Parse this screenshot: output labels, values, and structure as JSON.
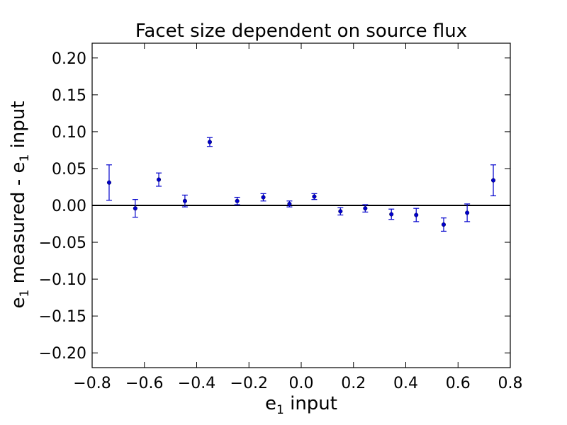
{
  "chart_data": {
    "type": "scatter",
    "title": "Facet size dependent on source flux",
    "xlabel": {
      "base": "e",
      "sub": "1",
      "rest": " input"
    },
    "ylabel": {
      "base": "e",
      "sub": "1",
      "mid": " measured - e",
      "sub2": "1",
      "rest": " input"
    },
    "xlim": [
      -0.8,
      0.8
    ],
    "ylim": [
      -0.22,
      0.22
    ],
    "xticks": [
      -0.8,
      -0.6,
      -0.4,
      -0.2,
      0.0,
      0.2,
      0.4,
      0.6,
      0.8
    ],
    "xtick_labels": [
      "−0.8",
      "−0.6",
      "−0.4",
      "−0.2",
      "0.0",
      "0.2",
      "0.4",
      "0.6",
      "0.8"
    ],
    "yticks": [
      0.2,
      0.15,
      0.1,
      0.05,
      0.0,
      -0.05,
      -0.1,
      -0.15,
      -0.2
    ],
    "ytick_labels": [
      "0.20",
      "0.15",
      "0.10",
      "0.05",
      "0.00",
      "−0.05",
      "−0.10",
      "−0.15",
      "−0.20"
    ],
    "reference_line": 0.0,
    "grid": false,
    "series": [
      {
        "color": "#0000cc",
        "points": [
          {
            "x": -0.735,
            "y": 0.031,
            "yerr": 0.024
          },
          {
            "x": -0.635,
            "y": -0.004,
            "yerr": 0.012
          },
          {
            "x": -0.545,
            "y": 0.035,
            "yerr": 0.009
          },
          {
            "x": -0.445,
            "y": 0.006,
            "yerr": 0.008
          },
          {
            "x": -0.35,
            "y": 0.086,
            "yerr": 0.006
          },
          {
            "x": -0.245,
            "y": 0.006,
            "yerr": 0.005
          },
          {
            "x": -0.145,
            "y": 0.011,
            "yerr": 0.005
          },
          {
            "x": -0.045,
            "y": 0.002,
            "yerr": 0.004
          },
          {
            "x": 0.05,
            "y": 0.012,
            "yerr": 0.004
          },
          {
            "x": 0.15,
            "y": -0.008,
            "yerr": 0.005
          },
          {
            "x": 0.245,
            "y": -0.004,
            "yerr": 0.005
          },
          {
            "x": 0.345,
            "y": -0.012,
            "yerr": 0.007
          },
          {
            "x": 0.44,
            "y": -0.013,
            "yerr": 0.009
          },
          {
            "x": 0.545,
            "y": -0.026,
            "yerr": 0.009
          },
          {
            "x": 0.635,
            "y": -0.01,
            "yerr": 0.012
          },
          {
            "x": 0.735,
            "y": 0.034,
            "yerr": 0.021
          }
        ]
      }
    ]
  }
}
